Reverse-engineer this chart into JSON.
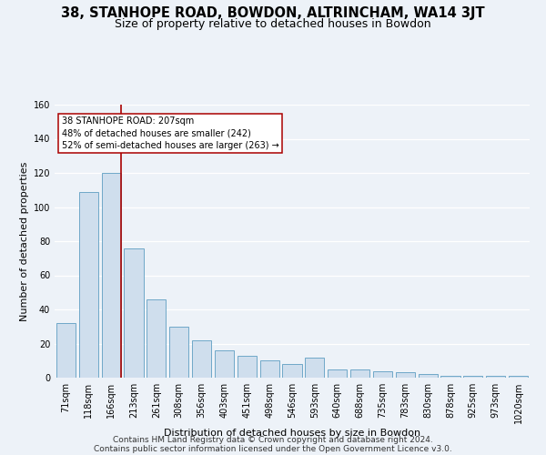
{
  "title": "38, STANHOPE ROAD, BOWDON, ALTRINCHAM, WA14 3JT",
  "subtitle": "Size of property relative to detached houses in Bowdon",
  "xlabel": "Distribution of detached houses by size in Bowdon",
  "ylabel": "Number of detached properties",
  "footer1": "Contains HM Land Registry data © Crown copyright and database right 2024.",
  "footer2": "Contains public sector information licensed under the Open Government Licence v3.0.",
  "categories": [
    "71sqm",
    "118sqm",
    "166sqm",
    "213sqm",
    "261sqm",
    "308sqm",
    "356sqm",
    "403sqm",
    "451sqm",
    "498sqm",
    "546sqm",
    "593sqm",
    "640sqm",
    "688sqm",
    "735sqm",
    "783sqm",
    "830sqm",
    "878sqm",
    "925sqm",
    "973sqm",
    "1020sqm"
  ],
  "values": [
    32,
    109,
    120,
    76,
    46,
    30,
    22,
    16,
    13,
    10,
    8,
    12,
    5,
    5,
    4,
    3,
    2,
    1,
    1,
    1,
    1
  ],
  "bar_color": "#cfdeed",
  "bar_edge_color": "#6fa8c8",
  "vline_color": "#aa0000",
  "vline_x": 2.45,
  "annotation_line1": "38 STANHOPE ROAD: 207sqm",
  "annotation_line2": "48% of detached houses are smaller (242)",
  "annotation_line3": "52% of semi-detached houses are larger (263) →",
  "ylim": [
    0,
    160
  ],
  "yticks": [
    0,
    20,
    40,
    60,
    80,
    100,
    120,
    140,
    160
  ],
  "background_color": "#edf2f8",
  "grid_color": "#ffffff",
  "title_fontsize": 10.5,
  "subtitle_fontsize": 9,
  "axis_label_fontsize": 8,
  "tick_fontsize": 7,
  "footer_fontsize": 6.5
}
